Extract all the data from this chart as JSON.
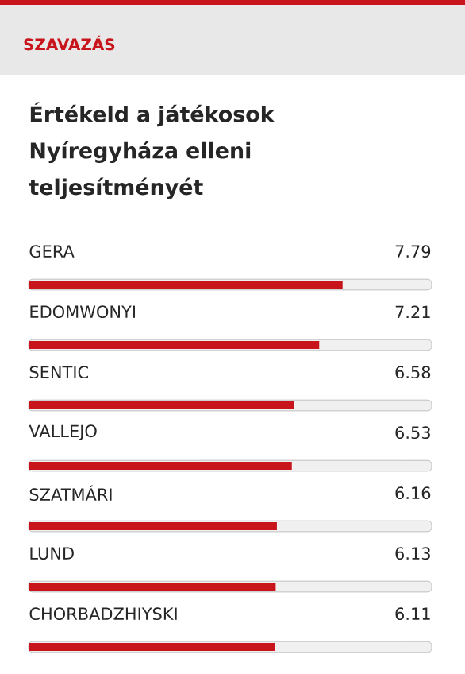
{
  "chart_data": {
    "type": "bar",
    "orientation": "horizontal",
    "title": "SZAVAZÁS",
    "subtitle": "Értékeld a játékosok Nyíregyháza elleni teljesítményét",
    "categories": [
      "GERA",
      "EDOMWONYI",
      "SENTIC",
      "VALLEJO",
      "SZATMÁRI",
      "LUND",
      "CHORBADZHIYSKI"
    ],
    "values": [
      7.79,
      7.21,
      6.58,
      6.53,
      6.16,
      6.13,
      6.11
    ],
    "color": "#c8151b",
    "xlim": [
      0,
      10
    ],
    "data_labels": true
  }
}
